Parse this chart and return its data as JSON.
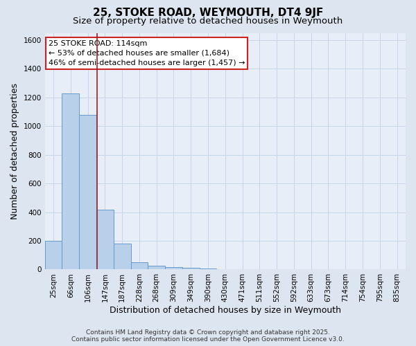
{
  "title": "25, STOKE ROAD, WEYMOUTH, DT4 9JF",
  "subtitle": "Size of property relative to detached houses in Weymouth",
  "xlabel": "Distribution of detached houses by size in Weymouth",
  "ylabel": "Number of detached properties",
  "categories": [
    "25sqm",
    "66sqm",
    "106sqm",
    "147sqm",
    "187sqm",
    "228sqm",
    "268sqm",
    "309sqm",
    "349sqm",
    "390sqm",
    "430sqm",
    "471sqm",
    "511sqm",
    "552sqm",
    "592sqm",
    "633sqm",
    "673sqm",
    "714sqm",
    "754sqm",
    "795sqm",
    "835sqm"
  ],
  "values": [
    200,
    1230,
    1080,
    415,
    180,
    50,
    28,
    18,
    10,
    7,
    0,
    0,
    0,
    0,
    0,
    0,
    0,
    0,
    0,
    0,
    0
  ],
  "bar_color": "#b8d0ea",
  "bar_edgecolor": "#6699cc",
  "vline_x": 2.55,
  "vline_color": "#992222",
  "annotation_title": "25 STOKE ROAD: 114sqm",
  "annotation_line1": "← 53% of detached houses are smaller (1,684)",
  "annotation_line2": "46% of semi-detached houses are larger (1,457) →",
  "annotation_box_edgecolor": "#cc2222",
  "annotation_box_facecolor": "#ffffff",
  "ylim": [
    0,
    1650
  ],
  "yticks": [
    0,
    200,
    400,
    600,
    800,
    1000,
    1200,
    1400,
    1600
  ],
  "footer_line1": "Contains HM Land Registry data © Crown copyright and database right 2025.",
  "footer_line2": "Contains public sector information licensed under the Open Government Licence v3.0.",
  "bg_color": "#dde5f0",
  "plot_bg_color": "#e8eef7",
  "grid_color": "#c8d4e8",
  "title_fontsize": 11,
  "subtitle_fontsize": 9.5,
  "label_fontsize": 9,
  "tick_fontsize": 7.5,
  "footer_fontsize": 6.5,
  "ann_fontsize": 8
}
